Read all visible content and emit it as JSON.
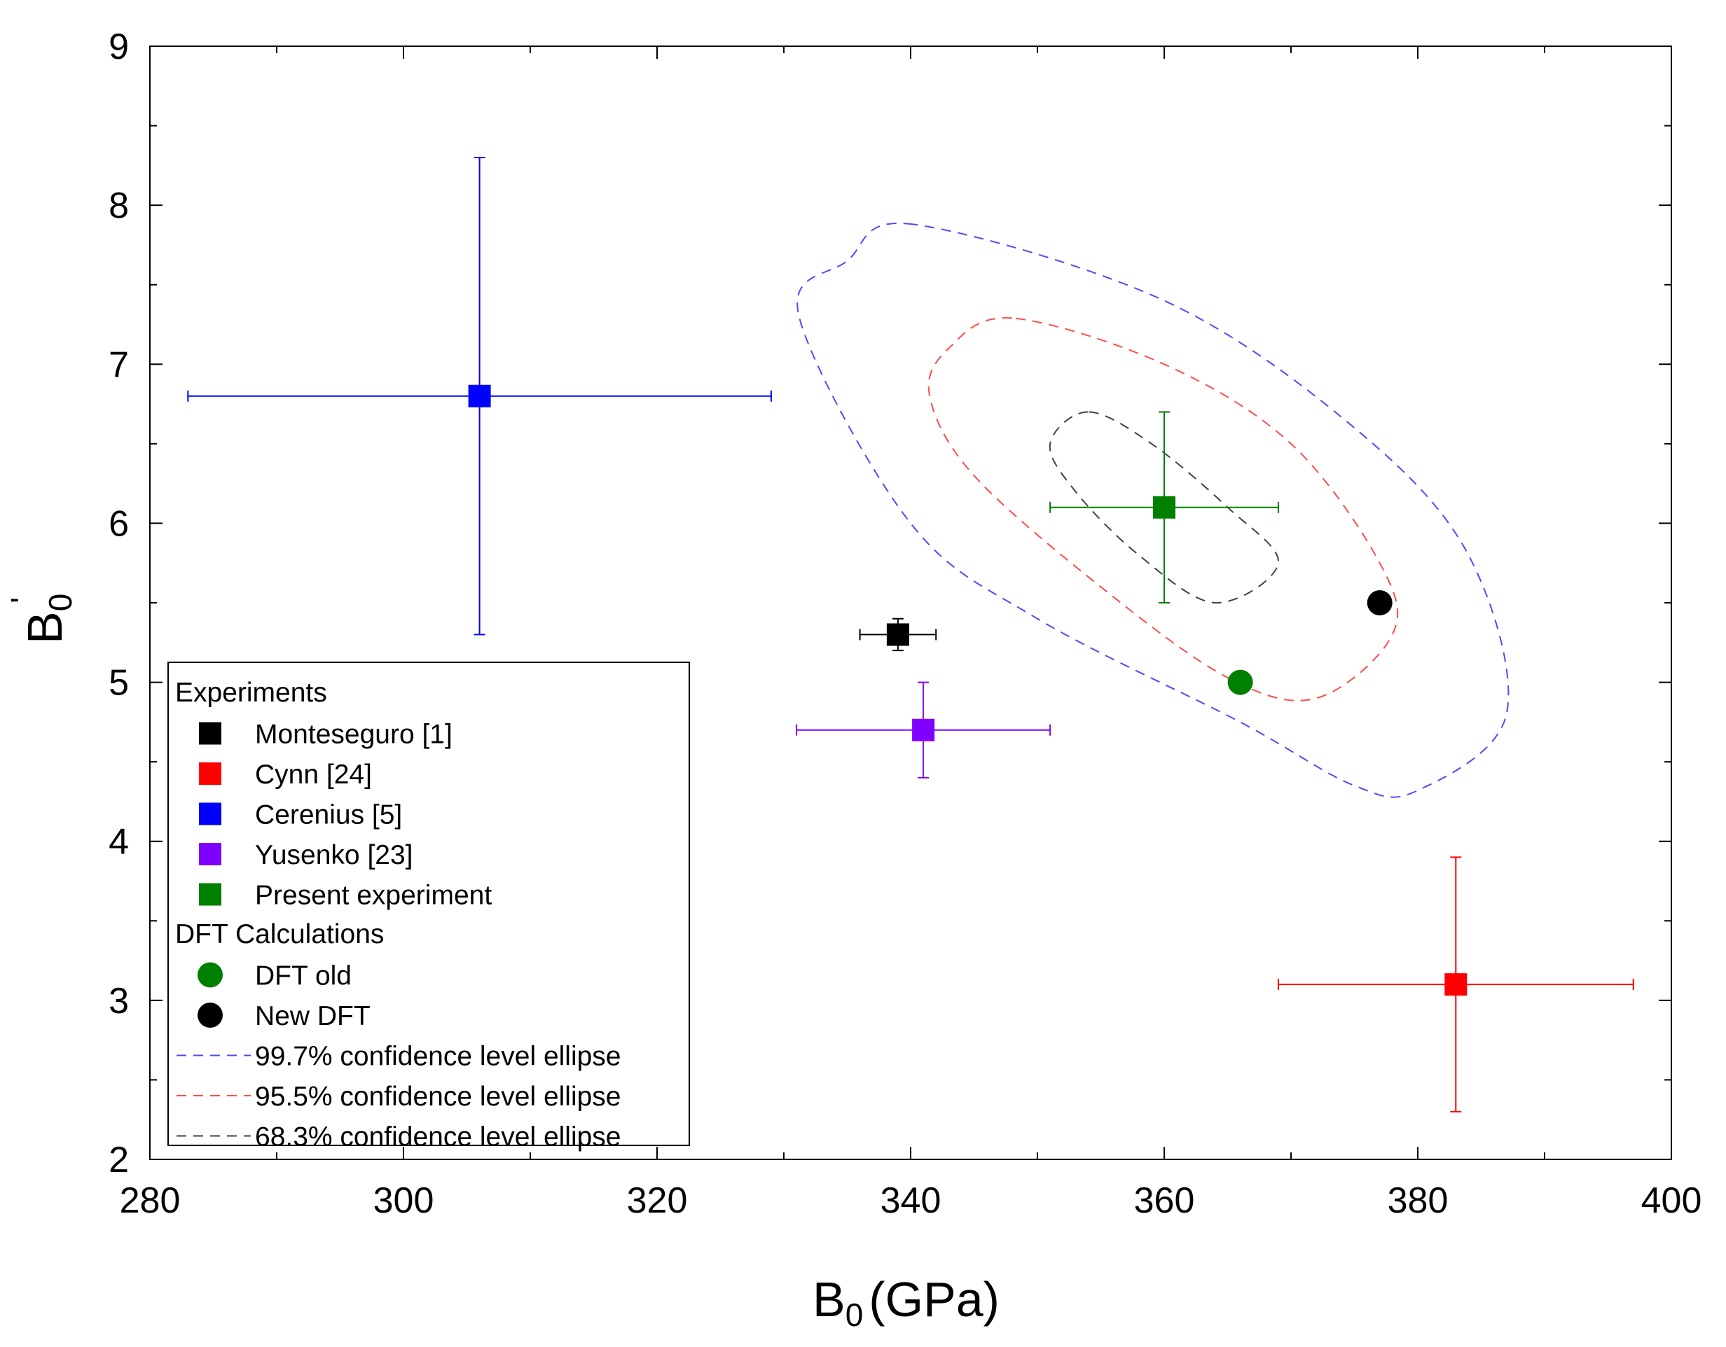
{
  "chart_data": {
    "type": "scatter",
    "xlabel": "B0 (GPa)",
    "ylabel": "B0'",
    "xlim": [
      280,
      400
    ],
    "ylim": [
      2,
      9
    ],
    "x_ticks": [
      "280",
      "300",
      "320",
      "340",
      "360",
      "380",
      "400"
    ],
    "y_ticks": [
      "2",
      "3",
      "4",
      "5",
      "6",
      "7",
      "8",
      "9"
    ],
    "grid": false,
    "legend_position": "bottom-left",
    "legend": {
      "group_experiments": "Experiments",
      "group_dft": "DFT Calculations"
    },
    "series": [
      {
        "name": "Monteseguro [1]",
        "group": "Experiments",
        "marker": "square",
        "color": "#000000",
        "x": 339,
        "y": 5.3,
        "x_err": [
          336,
          342
        ],
        "y_err": [
          5.2,
          5.4
        ]
      },
      {
        "name": "Cynn [24]",
        "group": "Experiments",
        "marker": "square",
        "color": "#ff0000",
        "x": 383,
        "y": 3.1,
        "x_err": [
          369,
          397
        ],
        "y_err": [
          2.3,
          3.9
        ]
      },
      {
        "name": "Cerenius [5]",
        "group": "Experiments",
        "marker": "square",
        "color": "#0000ff",
        "x": 306,
        "y": 6.8,
        "x_err": [
          283,
          329
        ],
        "y_err": [
          5.3,
          8.3
        ]
      },
      {
        "name": "Yusenko [23]",
        "group": "Experiments",
        "marker": "square",
        "color": "#8000ff",
        "x": 341,
        "y": 4.7,
        "x_err": [
          331,
          351
        ],
        "y_err": [
          4.4,
          5.0
        ]
      },
      {
        "name": "Present experiment",
        "group": "Experiments",
        "marker": "square",
        "color": "#008000",
        "x": 360,
        "y": 6.1,
        "x_err": [
          351,
          369
        ],
        "y_err": [
          5.5,
          6.7
        ]
      },
      {
        "name": "DFT old",
        "group": "DFT Calculations",
        "marker": "circle",
        "color": "#008000",
        "x": 366,
        "y": 5.0
      },
      {
        "name": "New DFT",
        "group": "DFT Calculations",
        "marker": "circle",
        "color": "#000000",
        "x": 377,
        "y": 5.5
      }
    ],
    "ellipses": [
      {
        "name": "99.7% confidence level ellipse",
        "color": "#4a4aff",
        "center": [
          360,
          6.1
        ],
        "points": [
          [
            340.2,
            7.88
          ],
          [
            335,
            7.65
          ],
          [
            331.2,
            7.3
          ],
          [
            340,
            6.0
          ],
          [
            350,
            5.4
          ],
          [
            366,
            4.75
          ],
          [
            375,
            4.35
          ],
          [
            380,
            4.32
          ],
          [
            387,
            4.8
          ],
          [
            384,
            5.8
          ],
          [
            375,
            6.6
          ],
          [
            360,
            7.4
          ]
        ]
      },
      {
        "name": "95.5% confidence level ellipse",
        "color": "#ff4a4a",
        "center": [
          360,
          6.1
        ],
        "points": [
          [
            348,
            7.29
          ],
          [
            343,
            7.1
          ],
          [
            341.5,
            6.8
          ],
          [
            345,
            6.3
          ],
          [
            355,
            5.6
          ],
          [
            365,
            5.03
          ],
          [
            372,
            4.9
          ],
          [
            378,
            5.3
          ],
          [
            377,
            5.75
          ],
          [
            370,
            6.5
          ],
          [
            360,
            7.0
          ]
        ]
      },
      {
        "name": "68.3% confidence level ellipse",
        "color": "#404040",
        "center": [
          360,
          6.1
        ],
        "points": [
          [
            354,
            6.7
          ],
          [
            351,
            6.5
          ],
          [
            353,
            6.2
          ],
          [
            358,
            5.8
          ],
          [
            364,
            5.5
          ],
          [
            369,
            5.75
          ],
          [
            365,
            6.1
          ],
          [
            359,
            6.5
          ]
        ]
      }
    ]
  }
}
